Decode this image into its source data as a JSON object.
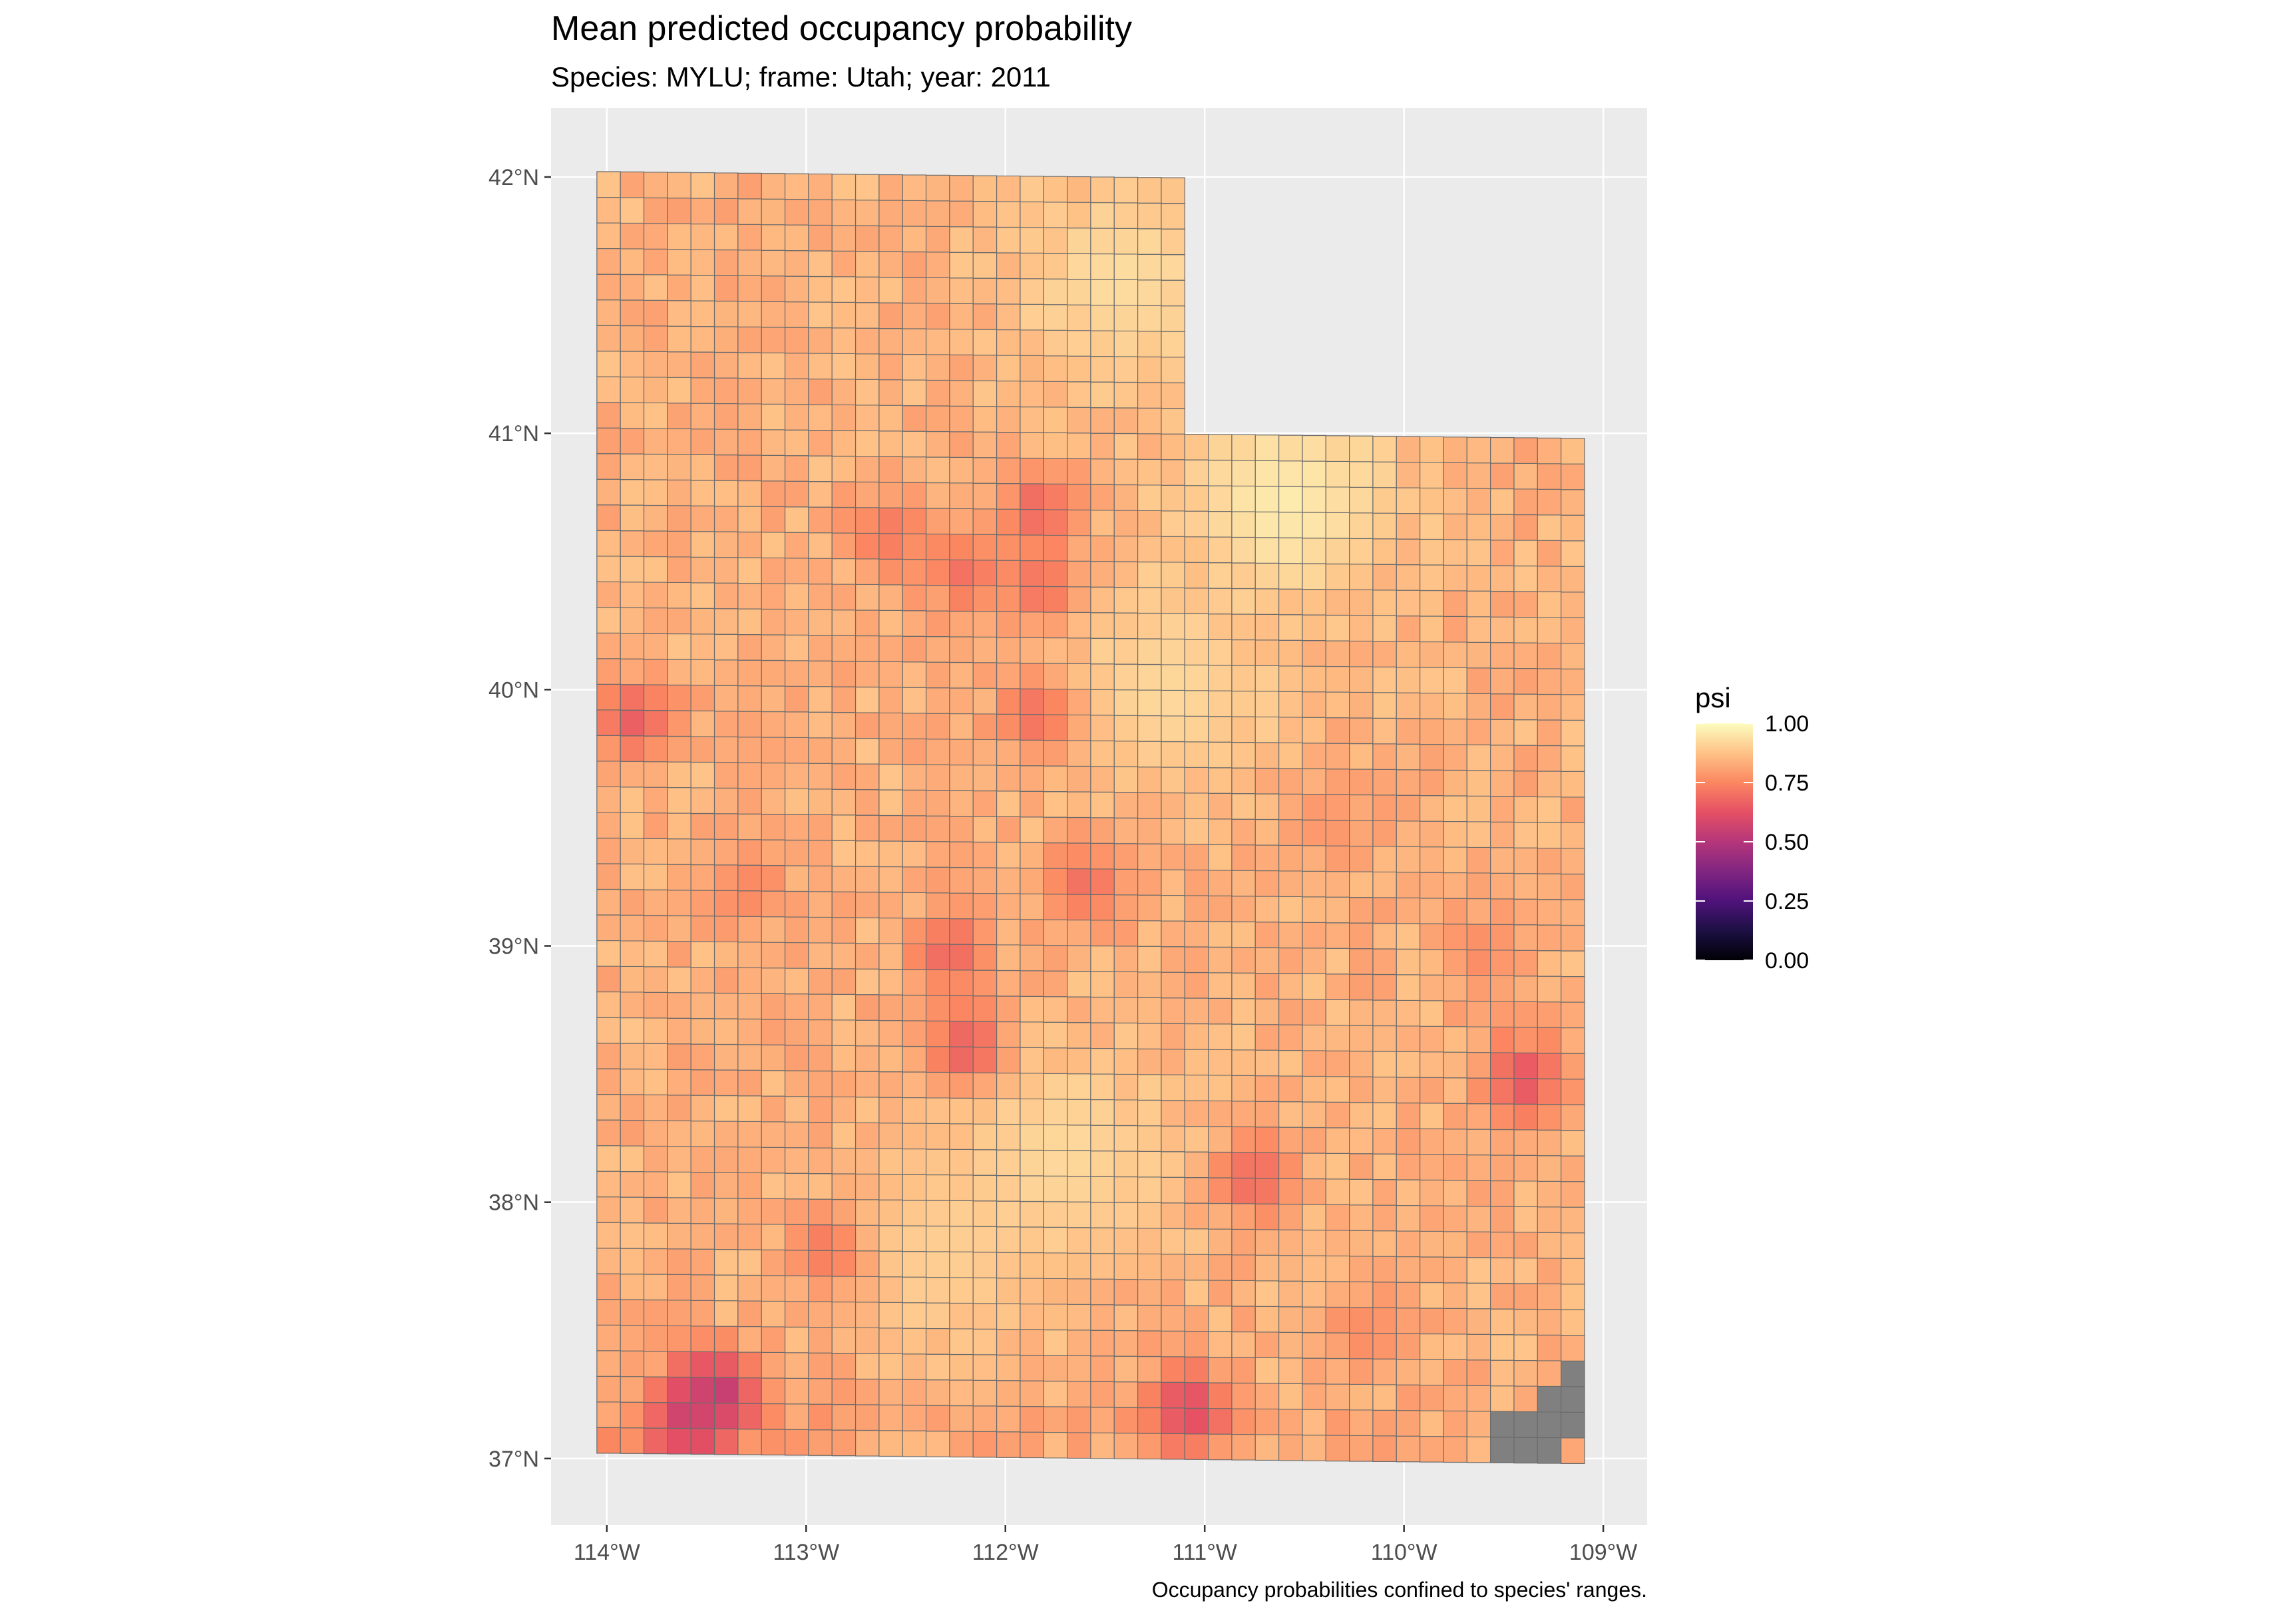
{
  "chart_data": {
    "type": "heatmap",
    "title": "Mean predicted occupancy probability",
    "subtitle": "Species: MYLU; frame: Utah; year: 2011",
    "caption": "Occupancy probabilities confined to species' ranges.",
    "x_tick_labels": [
      "114°W",
      "113°W",
      "112°W",
      "111°W",
      "110°W",
      "109°W"
    ],
    "x_ticks": [
      -114,
      -113,
      -112,
      -111,
      -110,
      -109
    ],
    "y_tick_labels": [
      "37°N",
      "38°N",
      "39°N",
      "40°N",
      "41°N",
      "42°N"
    ],
    "y_ticks": [
      37,
      38,
      39,
      40,
      41,
      42
    ],
    "xlim": [
      -114.28,
      -108.78
    ],
    "ylim": [
      36.74,
      42.27
    ],
    "grid": true,
    "cell_size_deg": [
      0.118,
      0.1
    ],
    "legend": {
      "title": "psi",
      "position": "right",
      "tick_values": [
        1.0,
        0.75,
        0.5,
        0.25,
        0.0
      ],
      "tick_labels": [
        "1.00",
        "0.75",
        "0.50",
        "0.25",
        "0.00"
      ],
      "palette": "magma",
      "na_color": "#808080"
    },
    "value_summary": "Most cells have psi of roughly 0.75–0.90; higher values (~0.90–0.95) in northeast and central Utah; lowest values (~0.50–0.65) along the southwestern border; grey (NA) cells in the far southeast corner.",
    "hotspots": [
      {
        "lon": -113.45,
        "lat": 37.25,
        "psi": 0.55
      },
      {
        "lon": -113.6,
        "lat": 37.15,
        "psi": 0.6
      },
      {
        "lon": -111.08,
        "lat": 37.2,
        "psi": 0.62
      },
      {
        "lon": -113.87,
        "lat": 39.86,
        "psi": 0.66
      },
      {
        "lon": -109.4,
        "lat": 38.5,
        "psi": 0.63
      },
      {
        "lon": -112.2,
        "lat": 38.6,
        "psi": 0.66
      },
      {
        "lon": -112.28,
        "lat": 38.97,
        "psi": 0.68
      },
      {
        "lon": -111.83,
        "lat": 40.7,
        "psi": 0.68
      },
      {
        "lon": -111.82,
        "lat": 40.4,
        "psi": 0.7
      },
      {
        "lon": -112.2,
        "lat": 40.45,
        "psi": 0.7
      },
      {
        "lon": -112.6,
        "lat": 40.6,
        "psi": 0.72
      },
      {
        "lon": -111.85,
        "lat": 39.9,
        "psi": 0.7
      },
      {
        "lon": -111.6,
        "lat": 39.25,
        "psi": 0.7
      },
      {
        "lon": -110.75,
        "lat": 38.1,
        "psi": 0.68
      },
      {
        "lon": -112.9,
        "lat": 37.8,
        "psi": 0.72
      },
      {
        "lon": -113.3,
        "lat": 39.2,
        "psi": 0.75
      },
      {
        "lon": -110.4,
        "lat": 39.5,
        "psi": 0.78
      },
      {
        "lon": -109.6,
        "lat": 39.0,
        "psi": 0.76
      },
      {
        "lon": -110.2,
        "lat": 37.5,
        "psi": 0.76
      }
    ],
    "high_zones": [
      {
        "lon": -110.6,
        "lat": 40.75,
        "psi": 0.96
      },
      {
        "lon": -111.4,
        "lat": 41.6,
        "psi": 0.93
      },
      {
        "lon": -111.2,
        "lat": 40.0,
        "psi": 0.92
      },
      {
        "lon": -111.7,
        "lat": 38.2,
        "psi": 0.92
      },
      {
        "lon": -112.3,
        "lat": 37.8,
        "psi": 0.9
      }
    ],
    "na_cells": [
      {
        "lon": -109.17,
        "lat": 37.35
      },
      {
        "lon": -109.29,
        "lat": 37.25
      },
      {
        "lon": -109.17,
        "lat": 37.25
      },
      {
        "lon": -109.53,
        "lat": 37.15
      },
      {
        "lon": -109.41,
        "lat": 37.15
      },
      {
        "lon": -109.29,
        "lat": 37.15
      },
      {
        "lon": -109.17,
        "lat": 37.15
      },
      {
        "lon": -109.53,
        "lat": 37.05
      },
      {
        "lon": -109.41,
        "lat": 37.05
      },
      {
        "lon": -109.29,
        "lat": 37.05
      }
    ]
  }
}
